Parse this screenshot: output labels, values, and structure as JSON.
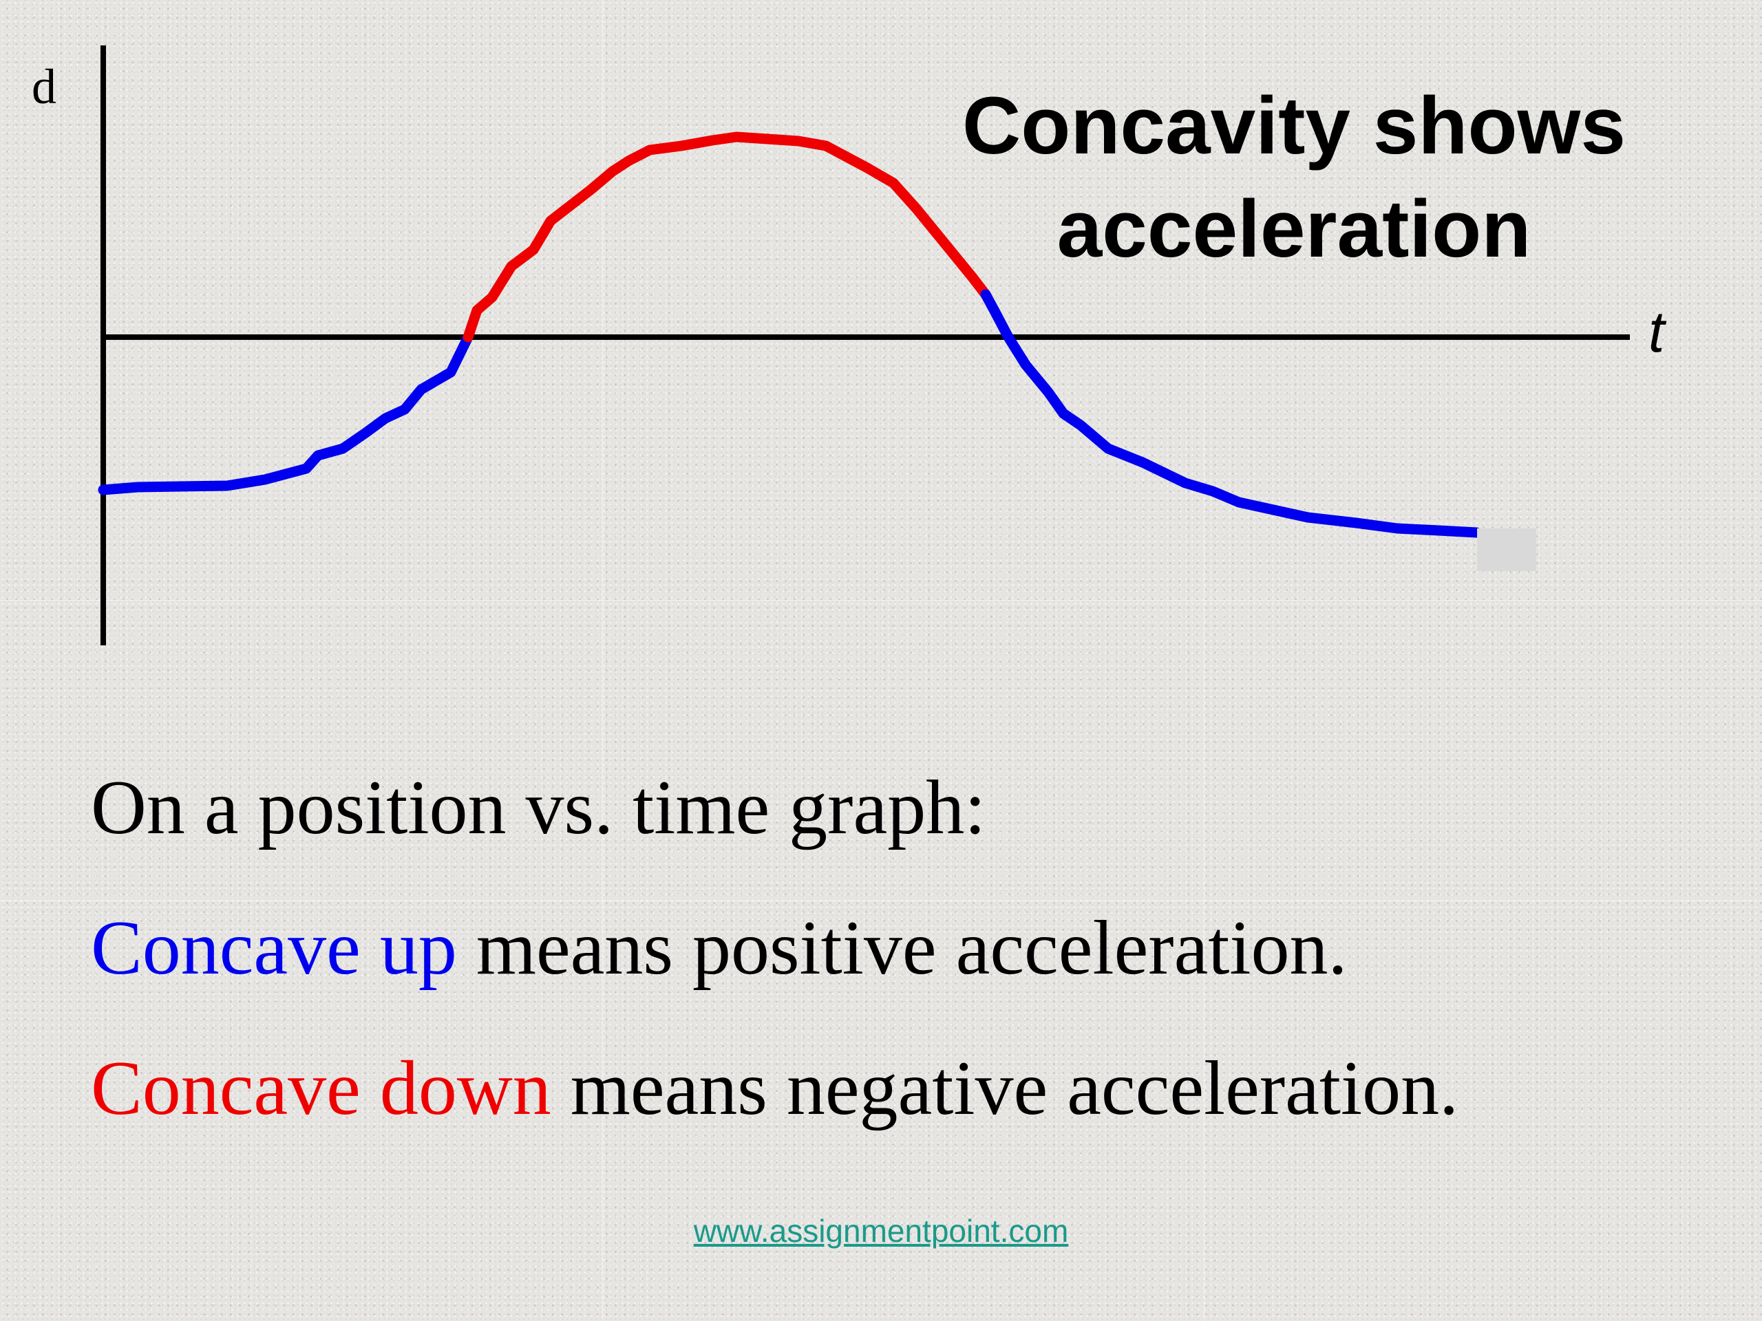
{
  "title": {
    "line1": "Concavity shows",
    "line2": "acceleration"
  },
  "axes": {
    "y_label": "d",
    "x_label": "t"
  },
  "body": {
    "line1": "On a position vs. time graph:",
    "line2_colored": "Concave up",
    "line2_rest": " means positive acceleration.",
    "line3_colored": "Concave down",
    "line3_rest": " means negative acceleration."
  },
  "footer": {
    "link": "www.assignmentpoint.com"
  },
  "colors": {
    "concave_up": "#0000ee",
    "concave_down": "#ee0000",
    "axis": "#000000",
    "link": "#1a9a8a"
  },
  "curve": {
    "segments": [
      {
        "name": "concave-up-left",
        "color_key": "concave_up",
        "t_start": 0.0,
        "t_end": 0.266
      },
      {
        "name": "concave-down",
        "color_key": "concave_down",
        "t_start": 0.266,
        "t_end": 0.598
      },
      {
        "name": "concave-up-right",
        "color_key": "concave_up",
        "t_start": 0.598,
        "t_end": 0.9
      }
    ]
  }
}
